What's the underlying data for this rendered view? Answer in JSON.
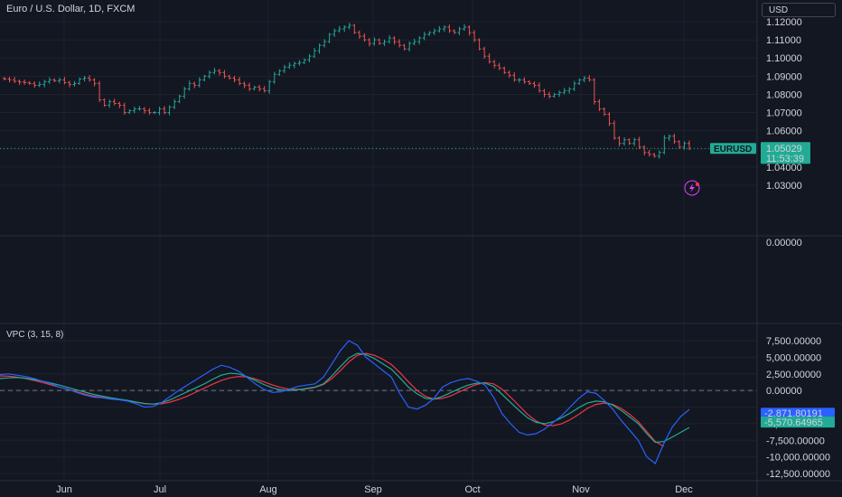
{
  "header": {
    "title": "Euro / U.S. Dollar, 1D, FXCM",
    "currency": "USD",
    "indicator_title": "VPC (3, 15, 8)"
  },
  "price_panel": {
    "symbol_tag": "EURUSD",
    "last_price": "1.05029",
    "countdown": "11:53:39",
    "y_ticks": [
      "1.12000",
      "1.11000",
      "1.10000",
      "1.09000",
      "1.08000",
      "1.07000",
      "1.06000",
      "1.04000",
      "1.03000"
    ],
    "zero_label": "0.00000"
  },
  "indicator_panel": {
    "y_ticks": [
      "7,500.00000",
      "5,000.00000",
      "2,500.00000",
      "0.00000",
      "-5,000.00000",
      "-7,500.00000",
      "-10,000.00000",
      "-12,500.00000"
    ],
    "blue_value": "-2,871.80191",
    "green_value": "-5,570.64965"
  },
  "x_axis": {
    "months": [
      "Jun",
      "Jul",
      "Aug",
      "Sep",
      "Oct",
      "Nov",
      "Dec"
    ]
  },
  "colors": {
    "background": "#131722",
    "up": "#26a69a",
    "down": "#ef5350",
    "price_tag": "#22ab94",
    "vpc_blue": "#2962ff",
    "vpc_green": "#22ab94",
    "vpc_red": "#f23645"
  },
  "chart_data": [
    {
      "type": "ohlc",
      "title": "Euro / U.S. Dollar, 1D, FXCM",
      "ylim": [
        1.025,
        1.124
      ],
      "x_labels": [
        "Jun",
        "Jul",
        "Aug",
        "Sep",
        "Oct",
        "Nov",
        "Dec"
      ],
      "closes": [
        1.0885,
        1.088,
        1.0872,
        1.0868,
        1.0865,
        1.086,
        1.085,
        1.0855,
        1.087,
        1.088,
        1.0875,
        1.088,
        1.0865,
        1.0855,
        1.086,
        1.0885,
        1.089,
        1.088,
        1.086,
        1.077,
        1.074,
        1.076,
        1.075,
        1.074,
        1.07,
        1.071,
        1.072,
        1.072,
        1.071,
        1.07,
        1.07,
        1.072,
        1.07,
        1.073,
        1.076,
        1.079,
        1.083,
        1.086,
        1.085,
        1.088,
        1.09,
        1.092,
        1.093,
        1.092,
        1.09,
        1.089,
        1.088,
        1.086,
        1.085,
        1.083,
        1.084,
        1.083,
        1.082,
        1.087,
        1.091,
        1.093,
        1.095,
        1.096,
        1.097,
        1.0975,
        1.099,
        1.101,
        1.104,
        1.107,
        1.109,
        1.113,
        1.115,
        1.116,
        1.117,
        1.118,
        1.114,
        1.112,
        1.11,
        1.108,
        1.11,
        1.108,
        1.109,
        1.111,
        1.109,
        1.107,
        1.105,
        1.108,
        1.109,
        1.111,
        1.113,
        1.114,
        1.115,
        1.116,
        1.117,
        1.115,
        1.114,
        1.116,
        1.117,
        1.114,
        1.11,
        1.105,
        1.101,
        1.098,
        1.096,
        1.0945,
        1.092,
        1.0905,
        1.088,
        1.088,
        1.087,
        1.086,
        1.085,
        1.082,
        1.08,
        1.079,
        1.08,
        1.081,
        1.082,
        1.083,
        1.086,
        1.088,
        1.089,
        1.088,
        1.076,
        1.072,
        1.069,
        1.064,
        1.056,
        1.053,
        1.055,
        1.053,
        1.055,
        1.051,
        1.048,
        1.047,
        1.046,
        1.048,
        1.056,
        1.057,
        1.054,
        1.051,
        1.053,
        1.0503
      ],
      "last": 1.05029,
      "countdown": "11:53:39"
    },
    {
      "type": "line",
      "title": "VPC (3, 15, 8)",
      "ylim": [
        -13000,
        8500
      ],
      "reference_line": 0,
      "series": [
        {
          "color": "#2962ff",
          "last_label": "-2,871.80191",
          "values": [
            2400,
            2500,
            2300,
            2100,
            1800,
            1400,
            1000,
            500,
            200,
            -300,
            -700,
            -1000,
            -1100,
            -1300,
            -1400,
            -1600,
            -2000,
            -2500,
            -2400,
            -1800,
            -900,
            0,
            800,
            1600,
            2400,
            3200,
            3800,
            3500,
            2900,
            2000,
            1000,
            200,
            -300,
            -200,
            200,
            600,
            800,
            1000,
            2000,
            4000,
            6000,
            7500,
            6800,
            5000,
            4000,
            3000,
            2000,
            -500,
            -2500,
            -2800,
            -2200,
            -1200,
            500,
            1200,
            1600,
            1800,
            1400,
            800,
            -1000,
            -3500,
            -5000,
            -6300,
            -6700,
            -6500,
            -5800,
            -4800,
            -3800,
            -2500,
            -1200,
            -200,
            -400,
            -1500,
            -2800,
            -4500,
            -6000,
            -7500,
            -10000,
            -11000,
            -8000,
            -5500,
            -3900,
            -2871.80191
          ]
        },
        {
          "color": "#22ab94",
          "values": [
            1800,
            1900,
            1950,
            1850,
            1650,
            1400,
            1100,
            800,
            450,
            100,
            -250,
            -600,
            -850,
            -1100,
            -1300,
            -1500,
            -1750,
            -2000,
            -2050,
            -1850,
            -1400,
            -800,
            -200,
            400,
            1000,
            1700,
            2300,
            2600,
            2500,
            2100,
            1500,
            900,
            400,
            100,
            0,
            100,
            300,
            500,
            1000,
            2200,
            3600,
            4900,
            5600,
            5400,
            4800,
            4000,
            3200,
            1900,
            500,
            -500,
            -1200,
            -1300,
            -900,
            -300,
            300,
            800,
            1100,
            1100,
            600,
            -600,
            -1800,
            -3000,
            -4100,
            -4800,
            -5000,
            -4700,
            -4100,
            -3400,
            -2600,
            -1900,
            -1600,
            -1700,
            -2200,
            -3000,
            -4000,
            -5000,
            -6500,
            -7800,
            -7700,
            -7000,
            -6300,
            -5570.64965
          ]
        },
        {
          "color": "#f23645",
          "values": [
            2200,
            2150,
            2000,
            1800,
            1500,
            1200,
            850,
            500,
            150,
            -200,
            -550,
            -850,
            -1050,
            -1250,
            -1400,
            -1550,
            -1750,
            -1950,
            -2050,
            -2000,
            -1750,
            -1350,
            -850,
            -250,
            350,
            950,
            1500,
            1900,
            2100,
            2050,
            1750,
            1300,
            850,
            450,
            200,
            150,
            250,
            450,
            900,
            1800,
            3000,
            4300,
            5300,
            5600,
            5300,
            4700,
            3900,
            2700,
            1300,
            0,
            -900,
            -1300,
            -1200,
            -800,
            -200,
            400,
            900,
            1200,
            1000,
            200,
            -1000,
            -2300,
            -3600,
            -4600,
            -5200,
            -5300,
            -5000,
            -4400,
            -3600,
            -2700,
            -2100,
            -1900,
            -2100,
            -2700,
            -3600,
            -4700,
            -6200,
            -7700,
            -8400,
            null,
            null,
            null
          ]
        }
      ]
    }
  ]
}
